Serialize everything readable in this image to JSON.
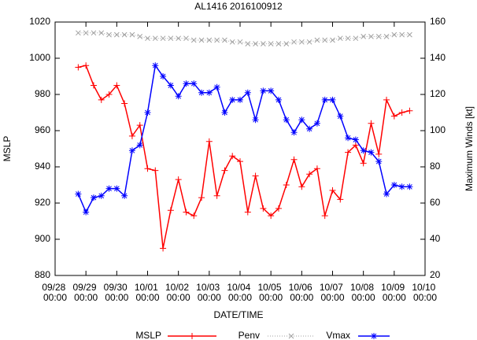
{
  "chart_data": {
    "type": "line",
    "title": "AL1416 2016100912",
    "x_label": "DATE/TIME",
    "y_label": "MSLP",
    "y2_label": "Maximum Winds [kt]",
    "x": [
      "09/28 18:00",
      "09/29 00:00",
      "09/29 06:00",
      "09/29 12:00",
      "09/29 18:00",
      "09/30 00:00",
      "09/30 06:00",
      "09/30 12:00",
      "09/30 18:00",
      "10/01 00:00",
      "10/01 06:00",
      "10/01 12:00",
      "10/01 18:00",
      "10/02 00:00",
      "10/02 06:00",
      "10/02 12:00",
      "10/02 18:00",
      "10/03 00:00",
      "10/03 06:00",
      "10/03 12:00",
      "10/03 18:00",
      "10/04 00:00",
      "10/04 06:00",
      "10/04 12:00",
      "10/04 18:00",
      "10/05 00:00",
      "10/05 06:00",
      "10/05 12:00",
      "10/05 18:00",
      "10/06 00:00",
      "10/06 06:00",
      "10/06 12:00",
      "10/06 18:00",
      "10/07 00:00",
      "10/07 06:00",
      "10/07 12:00",
      "10/07 18:00",
      "10/08 00:00",
      "10/08 06:00",
      "10/08 12:00",
      "10/08 18:00",
      "10/09 00:00",
      "10/09 06:00",
      "10/09 12:00"
    ],
    "series": [
      {
        "name": "MSLP",
        "color": "#ff0000",
        "marker": "plus",
        "dash": "solid",
        "values": [
          995,
          996,
          985,
          977,
          980,
          985,
          975,
          957,
          963,
          939,
          938,
          895,
          916,
          933,
          915,
          913,
          923,
          954,
          924,
          938,
          946,
          943,
          915,
          935,
          917,
          913,
          917,
          930,
          944,
          929,
          936,
          939,
          913,
          927,
          922,
          948,
          952,
          942,
          964,
          947,
          977,
          968,
          970,
          971
        ]
      },
      {
        "name": "Penv",
        "color": "#a0a0a0",
        "marker": "cross",
        "dash": "dotted",
        "values": [
          1014,
          1014,
          1014,
          1014,
          1013,
          1013,
          1013,
          1013,
          1012,
          1011,
          1011,
          1011,
          1011,
          1011,
          1011,
          1010,
          1010,
          1010,
          1010,
          1010,
          1009,
          1009,
          1008,
          1008,
          1008,
          1008,
          1008,
          1008,
          1009,
          1009,
          1009,
          1010,
          1010,
          1010,
          1011,
          1011,
          1011,
          1012,
          1012,
          1012,
          1012,
          1013,
          1013,
          1013
        ]
      },
      {
        "name": "Vmax",
        "color": "#0000ff",
        "marker": "star",
        "dash": "solid",
        "axis": "y2",
        "values": [
          65,
          55,
          63,
          64,
          68,
          68,
          64,
          89,
          92,
          110,
          136,
          130,
          125,
          119,
          126,
          126,
          121,
          121,
          124,
          110,
          117,
          117,
          121,
          106,
          122,
          122,
          117,
          106,
          99,
          106,
          101,
          104,
          117,
          117,
          108,
          96,
          95,
          89,
          88,
          83,
          65,
          70,
          69,
          69
        ]
      }
    ],
    "xlim": [
      "09/28 00:00",
      "10/10 00:00"
    ],
    "xticks": [
      "09/28 00:00",
      "09/29 00:00",
      "09/30 00:00",
      "10/01 00:00",
      "10/02 00:00",
      "10/03 00:00",
      "10/04 00:00",
      "10/05 00:00",
      "10/06 00:00",
      "10/07 00:00",
      "10/08 00:00",
      "10/09 00:00",
      "10/10 00:00"
    ],
    "ylim": [
      880,
      1020
    ],
    "yticks": [
      880,
      900,
      920,
      940,
      960,
      980,
      1000,
      1020
    ],
    "y2lim": [
      20,
      160
    ],
    "y2ticks": [
      20,
      40,
      60,
      80,
      100,
      120,
      140,
      160
    ],
    "grid": false,
    "legend": "bottom"
  }
}
